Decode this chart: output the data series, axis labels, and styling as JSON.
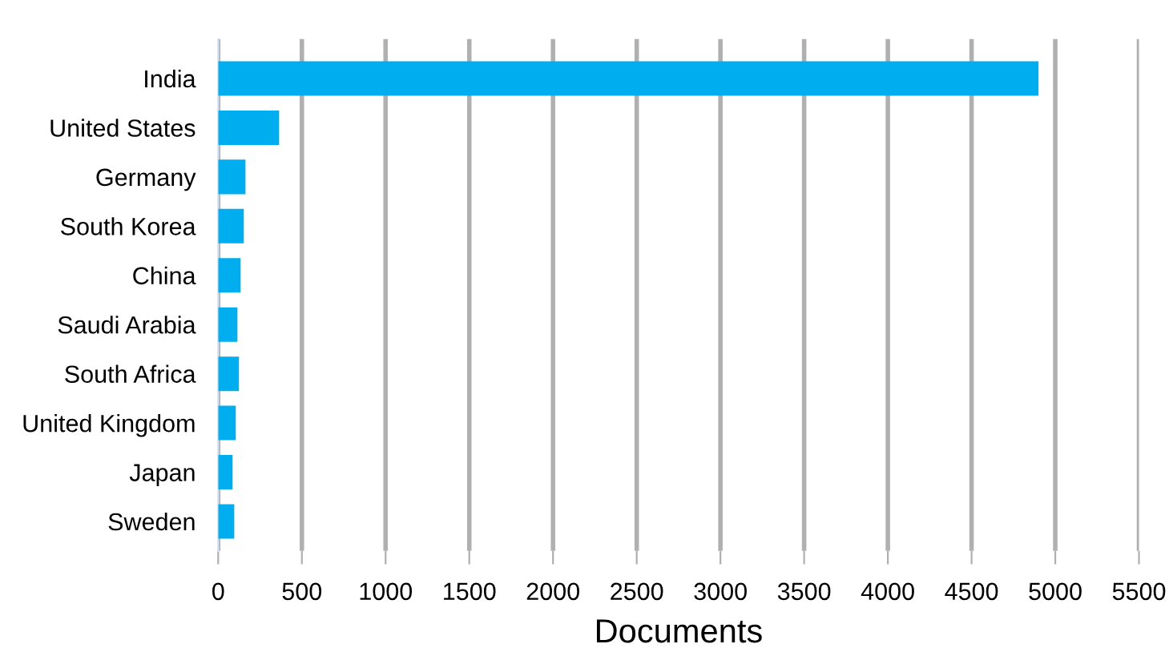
{
  "chart_data": {
    "type": "bar",
    "orientation": "horizontal",
    "xlabel": "Documents",
    "categories": [
      "India",
      "United States",
      "Germany",
      "South Korea",
      "China",
      "Saudi Arabia",
      "South Africa",
      "United Kingdom",
      "Japan",
      "Sweden"
    ],
    "values": [
      4900,
      364,
      163,
      153,
      134,
      115,
      124,
      105,
      86,
      96
    ],
    "color": "#00adef",
    "xlim": [
      0,
      5500
    ],
    "xticks": [
      0,
      500,
      1000,
      1500,
      2000,
      2500,
      3000,
      3500,
      4000,
      4500,
      5000,
      5500
    ],
    "grid": "x"
  }
}
